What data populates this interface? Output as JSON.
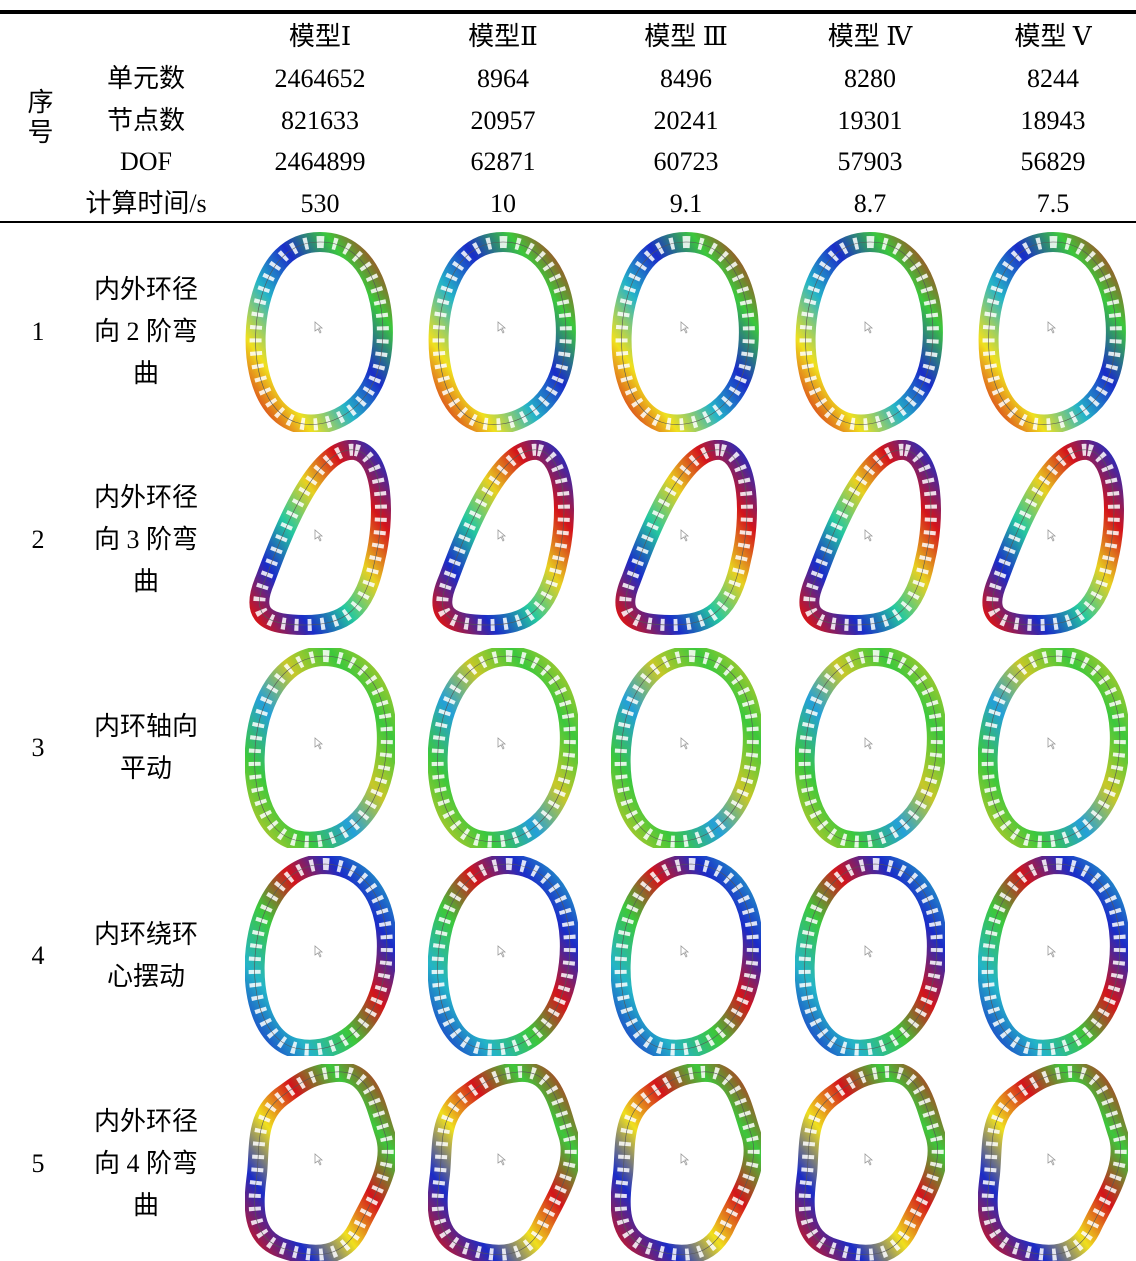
{
  "header": {
    "row_label": "序号",
    "models": [
      "模型Ⅰ",
      "模型Ⅱ",
      "模型 Ⅲ",
      "模型 Ⅳ",
      "模型 Ⅴ"
    ]
  },
  "stats": [
    {
      "label": "单元数",
      "values": [
        2464652,
        8964,
        8496,
        8280,
        8244
      ]
    },
    {
      "label": "节点数",
      "values": [
        821633,
        20957,
        20241,
        19301,
        18943
      ]
    },
    {
      "label": "DOF",
      "values": [
        2464899,
        62871,
        60723,
        57903,
        56829
      ]
    },
    {
      "label": "计算时间/s",
      "values": [
        530,
        10,
        9.1,
        8.7,
        7.5
      ]
    }
  ],
  "modes": [
    {
      "number": 1,
      "description": "内外环径向 2 阶弯曲"
    },
    {
      "number": 2,
      "description": "内外环径向 3 阶弯曲"
    },
    {
      "number": 3,
      "description": "内环轴向平动"
    },
    {
      "number": 4,
      "description": "内环绕环心摆动"
    },
    {
      "number": 5,
      "description": "内外环径向 4 阶弯曲"
    }
  ]
}
